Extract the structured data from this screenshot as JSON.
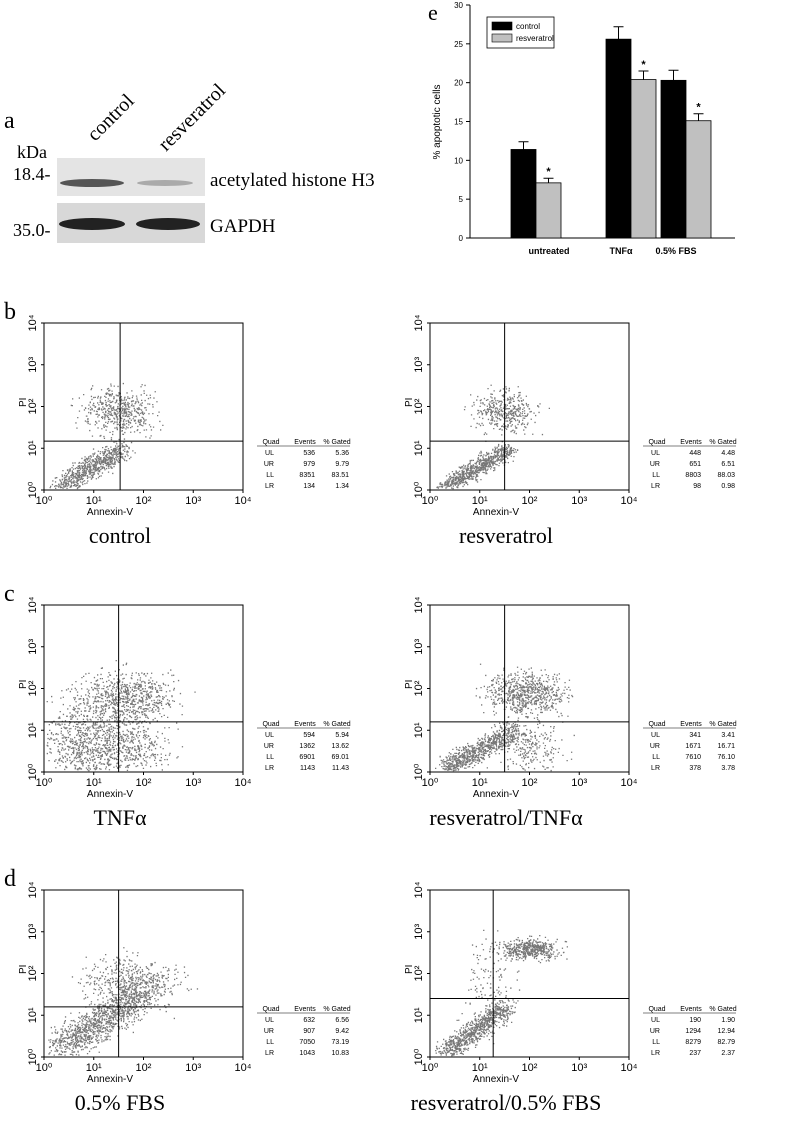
{
  "chart_data": {
    "type": "bar",
    "title": "e",
    "ylabel": "% apoptotic cells",
    "categories": [
      "untreated",
      "TNFα",
      "0.5% FBS"
    ],
    "series": [
      {
        "name": "control",
        "color": "#000000",
        "values": [
          11.4,
          25.6,
          20.3
        ],
        "errors": [
          1.0,
          1.6,
          1.3
        ]
      },
      {
        "name": "resveratrol",
        "color": "#c0c0c0",
        "values": [
          7.1,
          20.4,
          15.1
        ],
        "errors": [
          0.6,
          1.1,
          0.9
        ],
        "annotations": [
          "*",
          "*",
          "*"
        ]
      }
    ],
    "ylim": [
      0,
      30
    ],
    "yticks": [
      0,
      5,
      10,
      15,
      20,
      25,
      30
    ]
  },
  "figure": {
    "panel_a": {
      "label": "a",
      "lanes": [
        "control",
        "resveratrol"
      ],
      "unit": "kDa",
      "markers": [
        "18.4-",
        "35.0-"
      ],
      "bands": [
        "acetylated histone H3",
        "GAPDH"
      ]
    },
    "flow_axes": {
      "x_label": "Annexin-V",
      "y_label": "PI",
      "ticks": [
        {
          "value": 1,
          "label": "10⁰"
        },
        {
          "value": 10,
          "label": "10¹"
        },
        {
          "value": 100,
          "label": "10²"
        },
        {
          "value": 1000,
          "label": "10³"
        },
        {
          "value": 10000,
          "label": "10⁴"
        }
      ]
    },
    "table_header": [
      "Quad",
      "Events",
      "% Gated"
    ],
    "rows": [
      {
        "label": "b",
        "plots": [
          {
            "caption": "control",
            "table": [
              [
                "UL",
                "536",
                "5.36"
              ],
              [
                "UR",
                "979",
                "9.79"
              ],
              [
                "LL",
                "8351",
                "83.51"
              ],
              [
                "LR",
                "134",
                "1.34"
              ]
            ]
          },
          {
            "caption": "resveratrol",
            "table": [
              [
                "UL",
                "448",
                "4.48"
              ],
              [
                "UR",
                "651",
                "6.51"
              ],
              [
                "LL",
                "8803",
                "88.03"
              ],
              [
                "LR",
                "98",
                "0.98"
              ]
            ]
          }
        ]
      },
      {
        "label": "c",
        "plots": [
          {
            "caption": "TNFα",
            "table": [
              [
                "UL",
                "594",
                "5.94"
              ],
              [
                "UR",
                "1362",
                "13.62"
              ],
              [
                "LL",
                "6901",
                "69.01"
              ],
              [
                "LR",
                "1143",
                "11.43"
              ]
            ]
          },
          {
            "caption": "resveratrol/TNFα",
            "table": [
              [
                "UL",
                "341",
                "3.41"
              ],
              [
                "UR",
                "1671",
                "16.71"
              ],
              [
                "LL",
                "7610",
                "76.10"
              ],
              [
                "LR",
                "378",
                "3.78"
              ]
            ]
          }
        ]
      },
      {
        "label": "d",
        "plots": [
          {
            "caption": "0.5% FBS",
            "table": [
              [
                "UL",
                "632",
                "6.56"
              ],
              [
                "UR",
                "907",
                "9.42"
              ],
              [
                "LL",
                "7050",
                "73.19"
              ],
              [
                "LR",
                "1043",
                "10.83"
              ]
            ]
          },
          {
            "caption": "resveratrol/0.5% FBS",
            "table": [
              [
                "UL",
                "190",
                "1.90"
              ],
              [
                "UR",
                "1294",
                "12.94"
              ],
              [
                "LL",
                "8279",
                "82.79"
              ],
              [
                "LR",
                "237",
                "2.37"
              ]
            ]
          }
        ]
      }
    ]
  }
}
